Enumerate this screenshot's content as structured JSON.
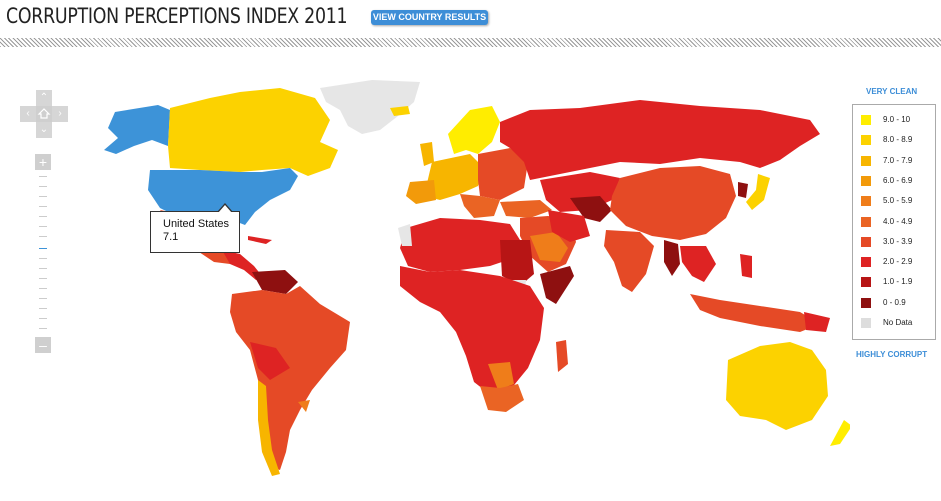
{
  "header": {
    "title": "CORRUPTION PERCEPTIONS INDEX 2011",
    "view_button": "VIEW COUNTRY RESULTS"
  },
  "tooltip": {
    "country": "United States",
    "score": "7.1"
  },
  "legend": {
    "top_label": "VERY CLEAN",
    "bottom_label": "HIGHLY CORRUPT",
    "items": [
      {
        "label": "9.0 - 10",
        "color": "#ffed00"
      },
      {
        "label": "8.0 - 8.9",
        "color": "#fcd200"
      },
      {
        "label": "7.0 - 7.9",
        "color": "#f7b500"
      },
      {
        "label": "6.0 - 6.9",
        "color": "#f29a0a"
      },
      {
        "label": "5.0 - 5.9",
        "color": "#ef7d1a"
      },
      {
        "label": "4.0 - 4.9",
        "color": "#ea6424"
      },
      {
        "label": "3.0 - 3.9",
        "color": "#e54a26"
      },
      {
        "label": "2.0 - 2.9",
        "color": "#de2323"
      },
      {
        "label": "1.0 - 1.9",
        "color": "#b71515"
      },
      {
        "label": "0 - 0.9",
        "color": "#8e1010"
      },
      {
        "label": "No Data",
        "color": "#dddddd"
      }
    ]
  },
  "map": {
    "selected_color": "#3d93d8",
    "icons": [
      "pan-up-icon",
      "pan-left-icon",
      "pan-right-icon",
      "pan-down-icon",
      "home-icon",
      "zoom-in-icon",
      "zoom-out-icon"
    ]
  }
}
